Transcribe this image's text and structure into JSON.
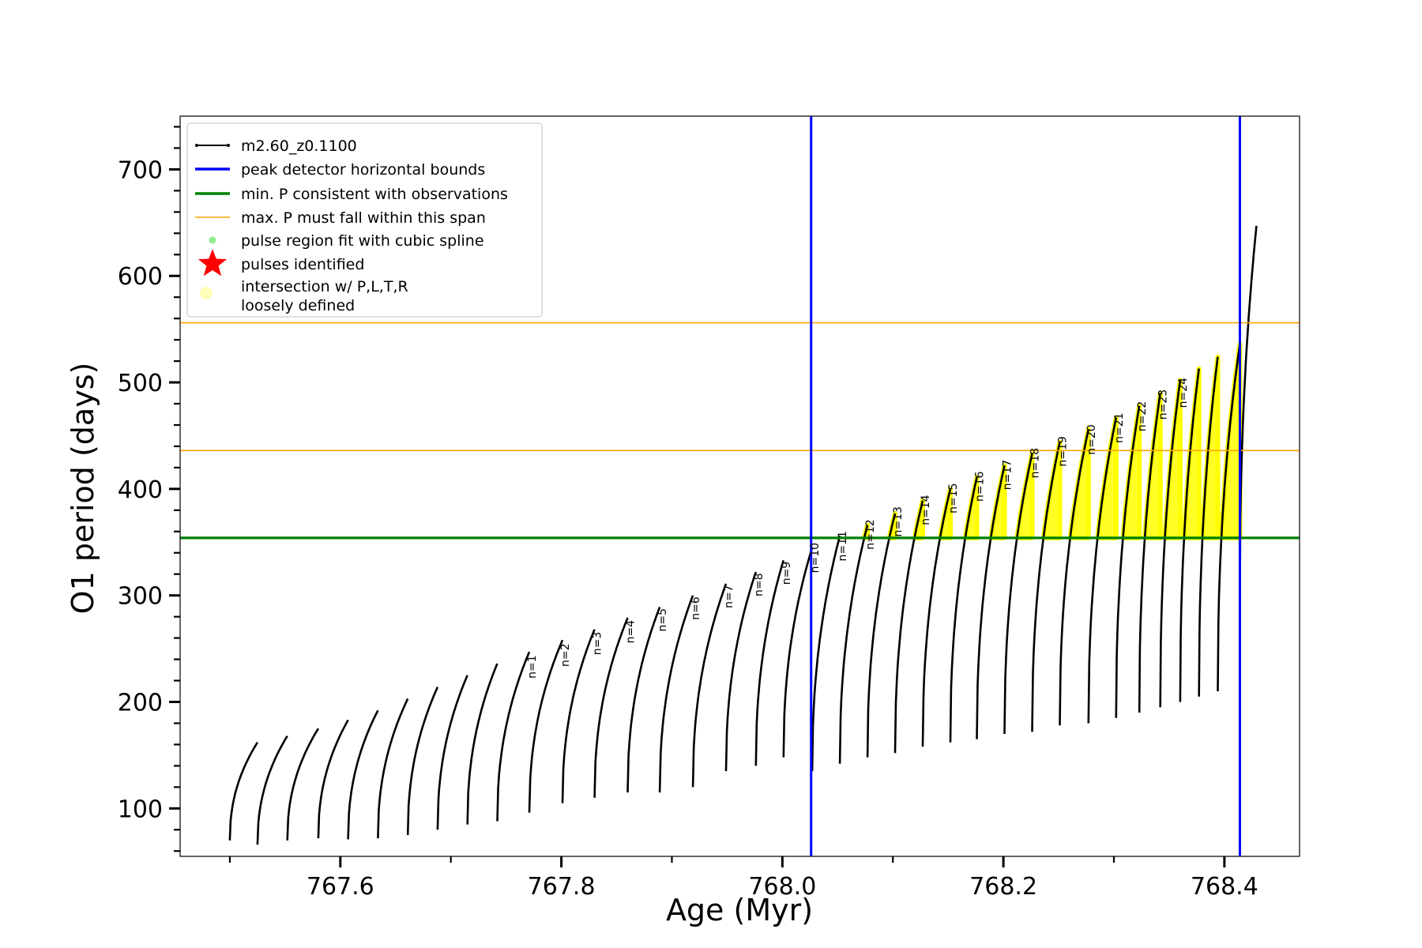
{
  "chart_data": {
    "type": "line",
    "title": "",
    "xlabel": "Age (Myr)",
    "ylabel": "O1 period (days)",
    "xlim": [
      767.455,
      768.468
    ],
    "ylim": [
      55,
      750
    ],
    "x_ticks": [
      767.6,
      767.8,
      768.0,
      768.2,
      768.4
    ],
    "x_tick_labels": [
      "767.6",
      "767.8",
      "768.0",
      "768.2",
      "768.4"
    ],
    "y_ticks": [
      100,
      200,
      300,
      400,
      500,
      600,
      700
    ],
    "y_tick_labels": [
      "100",
      "200",
      "300",
      "400",
      "500",
      "600",
      "700"
    ],
    "grid": false,
    "legend_position": "top-left",
    "colors": {
      "track": "#000000",
      "bounds": "#0000ff",
      "min_p": "#008000",
      "max_p": "#ffa500",
      "spline": "#90ee90",
      "pulses": "#ff0000",
      "loose": "#ffff00"
    },
    "legend": [
      {
        "label": "m2.60_z0.1100",
        "kind": "line-dot",
        "color": "#000000"
      },
      {
        "label": "peak detector horizontal bounds",
        "kind": "line",
        "color": "#0000ff"
      },
      {
        "label": "min. P consistent with observations",
        "kind": "line",
        "color": "#008000"
      },
      {
        "label": "max. P must fall within this span",
        "kind": "thin-line",
        "color": "#ffa500"
      },
      {
        "label": "pulse region fit with cubic spline",
        "kind": "dot",
        "color": "#90ee90"
      },
      {
        "label": "pulses identified",
        "kind": "star",
        "color": "#ff0000"
      },
      {
        "label": "intersection w/ P,L,T,R",
        "label2": "loosely defined",
        "kind": "circle",
        "color": "#ffffaa"
      }
    ],
    "vertical_bounds": [
      768.026,
      768.414
    ],
    "min_period": 354,
    "max_period_span": [
      436,
      556
    ],
    "series": [
      {
        "name": "m2.60_z0.1100",
        "pulses": [
          {
            "start": 767.5,
            "end": 767.525,
            "min": 70,
            "max": 162
          },
          {
            "start": 767.525,
            "end": 767.552,
            "min": 66,
            "max": 168
          },
          {
            "start": 767.552,
            "end": 767.58,
            "min": 70,
            "max": 175
          },
          {
            "start": 767.58,
            "end": 767.607,
            "min": 72,
            "max": 183
          },
          {
            "start": 767.607,
            "end": 767.634,
            "min": 71,
            "max": 192
          },
          {
            "start": 767.634,
            "end": 767.661,
            "min": 72,
            "max": 203
          },
          {
            "start": 767.661,
            "end": 767.688,
            "min": 75,
            "max": 214
          },
          {
            "start": 767.688,
            "end": 767.715,
            "min": 80,
            "max": 225
          },
          {
            "start": 767.715,
            "end": 767.742,
            "min": 85,
            "max": 236
          },
          {
            "start": 767.742,
            "end": 767.771,
            "min": 88,
            "max": 247
          },
          {
            "start": 767.771,
            "end": 767.801,
            "min": 96,
            "max": 258
          },
          {
            "start": 767.801,
            "end": 767.83,
            "min": 105,
            "max": 268
          },
          {
            "start": 767.83,
            "end": 767.86,
            "min": 110,
            "max": 279
          },
          {
            "start": 767.86,
            "end": 767.889,
            "min": 115,
            "max": 289
          },
          {
            "start": 767.889,
            "end": 767.919,
            "min": 115,
            "max": 300
          },
          {
            "start": 767.919,
            "end": 767.949,
            "min": 120,
            "max": 311
          },
          {
            "start": 767.949,
            "end": 767.976,
            "min": 135,
            "max": 322
          },
          {
            "start": 767.976,
            "end": 768.001,
            "min": 140,
            "max": 333
          },
          {
            "start": 768.001,
            "end": 768.027,
            "min": 148,
            "max": 345
          },
          {
            "start": 768.027,
            "end": 768.052,
            "min": 135,
            "max": 356
          },
          {
            "start": 768.052,
            "end": 768.077,
            "min": 142,
            "max": 366
          },
          {
            "start": 768.077,
            "end": 768.102,
            "min": 148,
            "max": 377
          },
          {
            "start": 768.102,
            "end": 768.127,
            "min": 152,
            "max": 389
          },
          {
            "start": 768.127,
            "end": 768.152,
            "min": 158,
            "max": 400
          },
          {
            "start": 768.152,
            "end": 768.176,
            "min": 162,
            "max": 411
          },
          {
            "start": 768.176,
            "end": 768.201,
            "min": 165,
            "max": 422
          },
          {
            "start": 768.201,
            "end": 768.226,
            "min": 170,
            "max": 433
          },
          {
            "start": 768.226,
            "end": 768.251,
            "min": 172,
            "max": 444
          },
          {
            "start": 768.251,
            "end": 768.277,
            "min": 178,
            "max": 456
          },
          {
            "start": 768.277,
            "end": 768.302,
            "min": 180,
            "max": 467
          },
          {
            "start": 768.302,
            "end": 768.323,
            "min": 185,
            "max": 478
          },
          {
            "start": 768.323,
            "end": 768.342,
            "min": 190,
            "max": 490
          },
          {
            "start": 768.342,
            "end": 768.36,
            "min": 195,
            "max": 502
          },
          {
            "start": 768.36,
            "end": 768.377,
            "min": 200,
            "max": 513
          },
          {
            "start": 768.377,
            "end": 768.394,
            "min": 205,
            "max": 524
          },
          {
            "start": 768.394,
            "end": 768.414,
            "min": 210,
            "max": 536
          },
          {
            "start": 768.414,
            "end": 768.429,
            "min": 300,
            "max": 647
          }
        ]
      }
    ],
    "annotations": [
      {
        "label": "n=1",
        "x": 767.771,
        "y": 222
      },
      {
        "label": "n=2",
        "x": 767.801,
        "y": 233
      },
      {
        "label": "n=3",
        "x": 767.83,
        "y": 244
      },
      {
        "label": "n=4",
        "x": 767.86,
        "y": 255
      },
      {
        "label": "n=5",
        "x": 767.889,
        "y": 266
      },
      {
        "label": "n=6",
        "x": 767.919,
        "y": 277
      },
      {
        "label": "n=7",
        "x": 767.949,
        "y": 288
      },
      {
        "label": "n=8",
        "x": 767.976,
        "y": 299
      },
      {
        "label": "n=9",
        "x": 768.001,
        "y": 310
      },
      {
        "label": "n=10",
        "x": 768.027,
        "y": 321
      },
      {
        "label": "n=11",
        "x": 768.052,
        "y": 332
      },
      {
        "label": "n=12",
        "x": 768.077,
        "y": 343
      },
      {
        "label": "n=13",
        "x": 768.102,
        "y": 355
      },
      {
        "label": "n=14",
        "x": 768.127,
        "y": 366
      },
      {
        "label": "n=15",
        "x": 768.152,
        "y": 377
      },
      {
        "label": "n=16",
        "x": 768.176,
        "y": 388
      },
      {
        "label": "n=17",
        "x": 768.201,
        "y": 399
      },
      {
        "label": "n=18",
        "x": 768.226,
        "y": 410
      },
      {
        "label": "n=19",
        "x": 768.251,
        "y": 421
      },
      {
        "label": "n=20",
        "x": 768.277,
        "y": 432
      },
      {
        "label": "n=21",
        "x": 768.302,
        "y": 443
      },
      {
        "label": "n=22",
        "x": 768.323,
        "y": 454
      },
      {
        "label": "n=23",
        "x": 768.342,
        "y": 465
      },
      {
        "label": "n=24",
        "x": 768.36,
        "y": 476
      }
    ]
  }
}
